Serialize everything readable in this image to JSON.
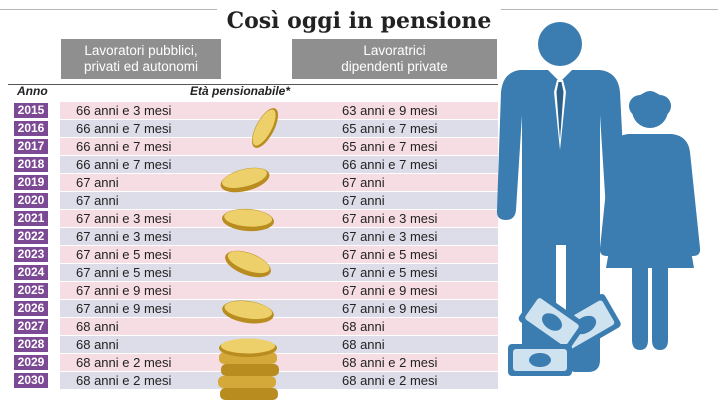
{
  "title": "Così oggi in pensione",
  "columns": {
    "anno": "Anno",
    "group1": [
      "Lavoratori pubblici,",
      "privati ed autonomi"
    ],
    "group2": [
      "Lavoratrici",
      "dipendenti private"
    ],
    "subheader": "Età pensionabile*"
  },
  "rows": [
    {
      "year": "2015",
      "a": "66 anni e 3 mesi",
      "b": "63 anni e 9 mesi"
    },
    {
      "year": "2016",
      "a": "66 anni e 7 mesi",
      "b": "65 anni e 7 mesi"
    },
    {
      "year": "2017",
      "a": "66 anni e 7 mesi",
      "b": "65 anni e 7 mesi"
    },
    {
      "year": "2018",
      "a": "66 anni e 7 mesi",
      "b": "66 anni e 7 mesi"
    },
    {
      "year": "2019",
      "a": "67 anni",
      "b": "67 anni"
    },
    {
      "year": "2020",
      "a": "67 anni",
      "b": "67 anni"
    },
    {
      "year": "2021",
      "a": "67 anni e 3 mesi",
      "b": "67 anni e 3 mesi"
    },
    {
      "year": "2022",
      "a": "67 anni e 3 mesi",
      "b": "67 anni e 3 mesi"
    },
    {
      "year": "2023",
      "a": "67 anni e 5 mesi",
      "b": "67 anni e 5 mesi"
    },
    {
      "year": "2024",
      "a": "67 anni e 5 mesi",
      "b": "67 anni e 5 mesi"
    },
    {
      "year": "2025",
      "a": "67 anni e 9 mesi",
      "b": "67 anni e 9 mesi"
    },
    {
      "year": "2026",
      "a": "67 anni e 9 mesi",
      "b": "67 anni e 9 mesi"
    },
    {
      "year": "2027",
      "a": "68 anni",
      "b": "68 anni"
    },
    {
      "year": "2028",
      "a": "68 anni",
      "b": "68 anni"
    },
    {
      "year": "2029",
      "a": "68 anni e 2 mesi",
      "b": "68 anni e 2 mesi"
    },
    {
      "year": "2030",
      "a": "68 anni e 2 mesi",
      "b": "68 anni e 2 mesi"
    }
  ],
  "colors": {
    "year_badge": "#7c4a94",
    "stripe_pink": "#f6dde4",
    "stripe_blue": "#dcdde9",
    "header_gray": "#8f8f8f",
    "figure_blue": "#3b7db0",
    "coin_gold": "#e8c14a"
  },
  "illustrations": [
    "falling-coins",
    "man-figure",
    "woman-figure",
    "banknotes"
  ]
}
